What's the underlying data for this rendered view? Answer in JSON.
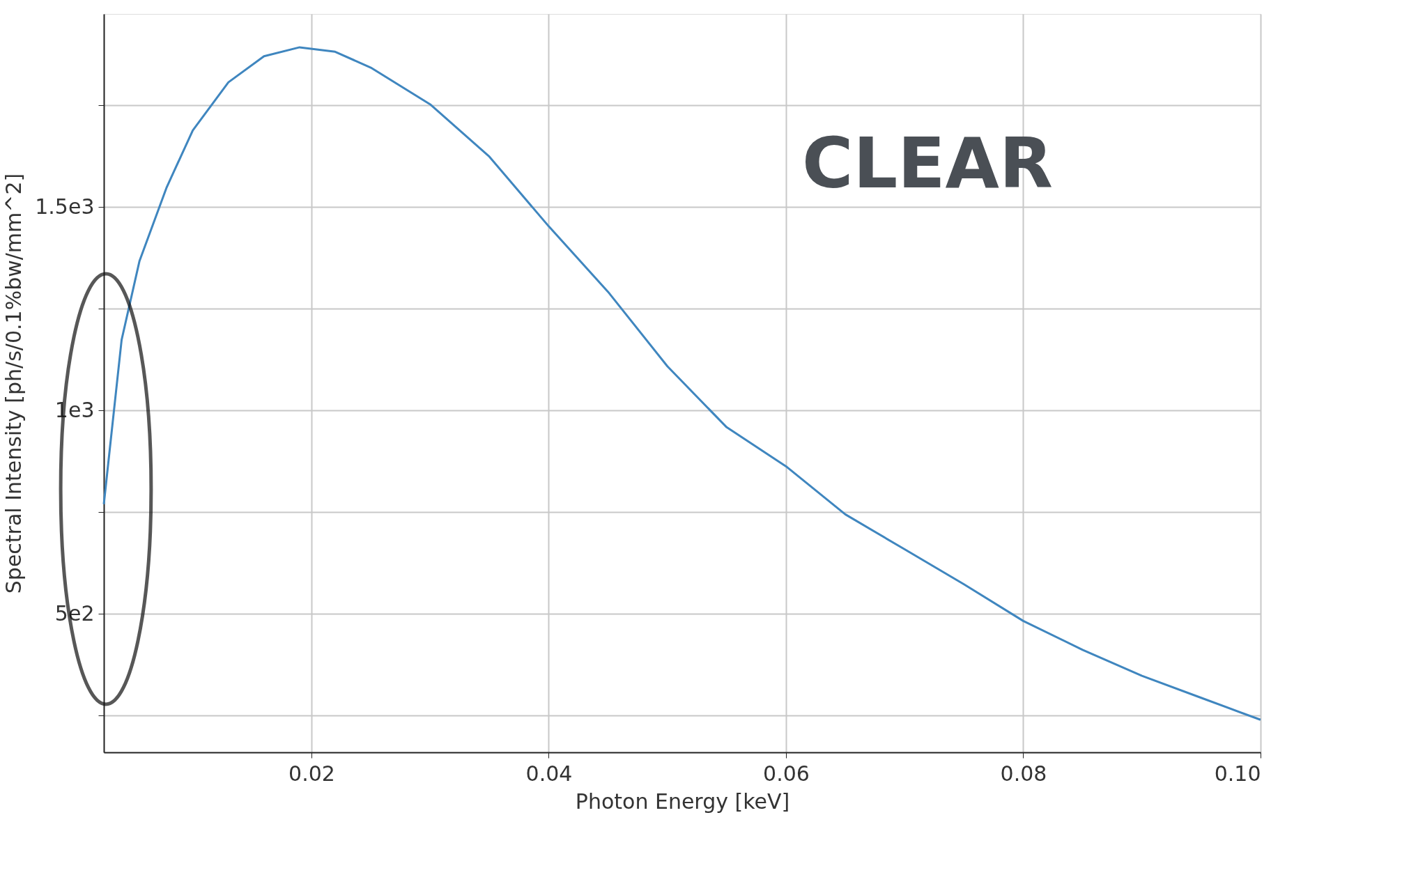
{
  "chart_data": {
    "type": "line",
    "xlabel": "Photon Energy [keV]",
    "ylabel": "Spectral Intensity [ph/s/0.1%bw/mm^2]",
    "annotations": [
      "CLEAR"
    ],
    "x": [
      0.0025,
      0.004,
      0.0055,
      0.0078,
      0.01,
      0.013,
      0.016,
      0.019,
      0.022,
      0.025,
      0.03,
      0.035,
      0.04,
      0.045,
      0.05,
      0.055,
      0.06,
      0.065,
      0.07,
      0.075,
      0.08,
      0.085,
      0.09,
      0.095,
      0.1
    ],
    "series": [
      {
        "color": "#3f86bf",
        "values": [
          770,
          1174,
          1367,
          1549,
          1689,
          1807,
          1871,
          1893,
          1882,
          1843,
          1753,
          1624,
          1453,
          1292,
          1109,
          959,
          863,
          745,
          659,
          573,
          483,
          412,
          348,
          294,
          240
        ]
      }
    ],
    "xlim": [
      0.0025,
      0.1
    ],
    "ylim": [
      160,
      1975
    ],
    "xticks": [
      0.02,
      0.04,
      0.06,
      0.08,
      {
        "value": 0.1,
        "label": "0.10"
      }
    ],
    "yticks": [
      {
        "value": 250,
        "label": null
      },
      {
        "value": 500,
        "label": "5e2"
      },
      {
        "value": 750,
        "label": null
      },
      {
        "value": 1000,
        "label": "1e3"
      },
      {
        "value": 1250,
        "label": null
      },
      {
        "value": 1500,
        "label": "1.5e3"
      },
      {
        "value": 1750,
        "label": null
      }
    ],
    "grid": true,
    "marker": "none",
    "line_style": "solid"
  }
}
